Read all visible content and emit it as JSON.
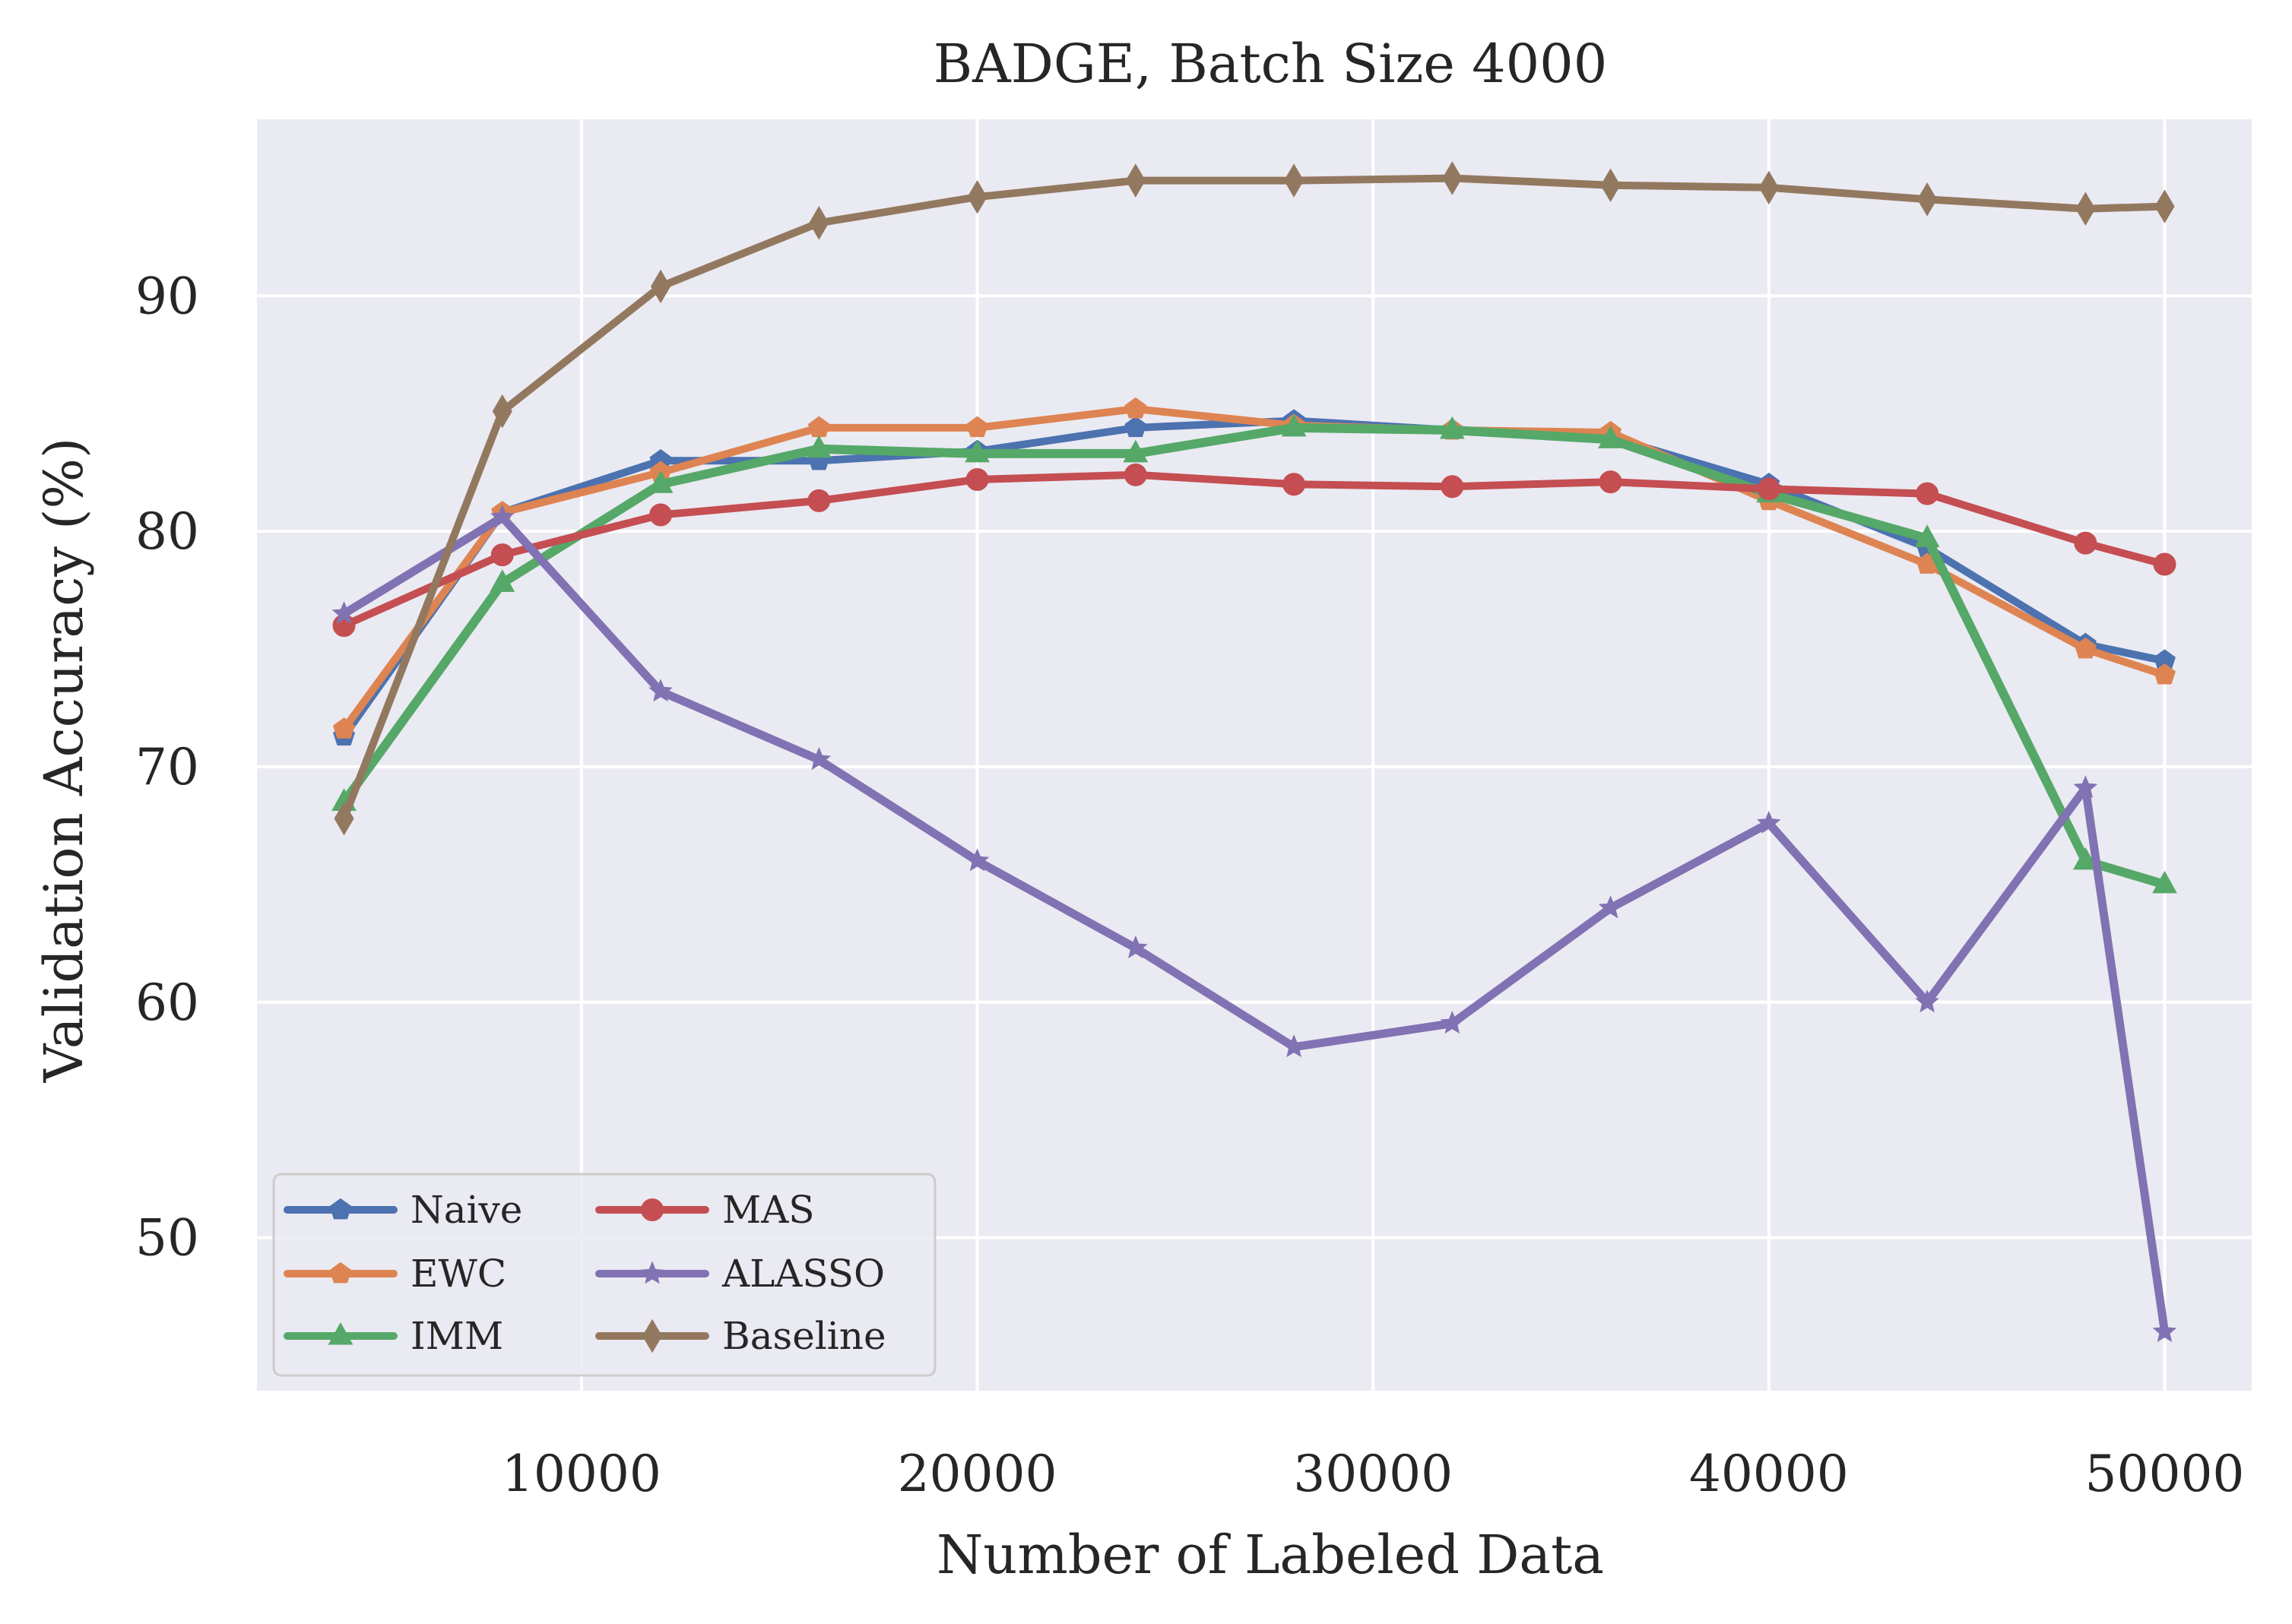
{
  "chart_data": {
    "type": "line",
    "title": "BADGE, Batch Size 4000",
    "xlabel": "Number of Labeled Data",
    "ylabel": "Validation Accuracy (%)",
    "xlim": [
      1800,
      52200
    ],
    "ylim": [
      43.5,
      97.5
    ],
    "x_ticks": [
      10000,
      20000,
      30000,
      40000,
      50000
    ],
    "y_ticks": [
      50,
      60,
      70,
      80,
      90
    ],
    "grid": true,
    "background": "#eaeaf2",
    "legend": {
      "location": "lower left",
      "columns": 2
    },
    "x": [
      4000,
      8000,
      12000,
      16000,
      20000,
      24000,
      28000,
      32000,
      36000,
      40000,
      44000,
      48000,
      50000
    ],
    "series": [
      {
        "name": "Naive",
        "color": "#4c72b0",
        "marker": "pentagon",
        "values": [
          71.3,
          80.8,
          83.0,
          83.0,
          83.4,
          84.4,
          84.7,
          84.3,
          84.0,
          82.0,
          79.3,
          75.2,
          74.5
        ]
      },
      {
        "name": "EWC",
        "color": "#dd8452",
        "marker": "pentagon",
        "values": [
          71.6,
          80.8,
          82.5,
          84.4,
          84.4,
          85.2,
          84.5,
          84.3,
          84.2,
          81.3,
          78.6,
          75.0,
          73.9
        ]
      },
      {
        "name": "IMM",
        "color": "#55a868",
        "marker": "triangle",
        "values": [
          68.5,
          77.8,
          82.0,
          83.5,
          83.3,
          83.3,
          84.4,
          84.3,
          83.9,
          81.6,
          79.7,
          66.0,
          65.0
        ]
      },
      {
        "name": "MAS",
        "color": "#c44e52",
        "marker": "circle",
        "values": [
          76.0,
          79.0,
          80.7,
          81.3,
          82.2,
          82.4,
          82.0,
          81.9,
          82.1,
          81.8,
          81.6,
          79.5,
          78.6
        ]
      },
      {
        "name": "ALASSO",
        "color": "#8172b3",
        "marker": "star",
        "values": [
          76.5,
          80.6,
          73.2,
          70.3,
          66.0,
          62.3,
          58.1,
          59.1,
          64.0,
          67.6,
          60.0,
          69.1,
          46.0
        ]
      },
      {
        "name": "Baseline",
        "color": "#937860",
        "marker": "diamond",
        "values": [
          67.8,
          85.1,
          90.4,
          93.1,
          94.2,
          94.9,
          94.9,
          95.0,
          94.7,
          94.6,
          94.1,
          93.7,
          93.8
        ]
      }
    ]
  }
}
